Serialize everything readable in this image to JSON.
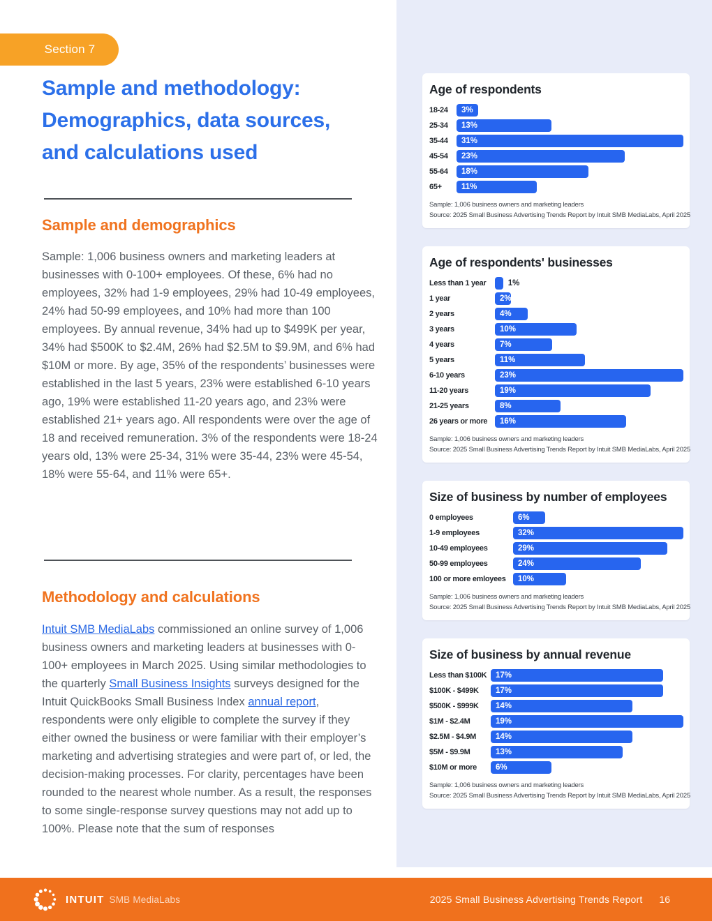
{
  "header": {
    "section_badge": "Section 7",
    "title_lines": [
      "Sample and methodology:",
      "Demographics, data sources,",
      "and calculations used"
    ]
  },
  "colors": {
    "badge_amber": "#f7a226",
    "heading_orange": "#f0731f",
    "footer_orange": "#f0711d",
    "title_blue": "#2c70e9",
    "link_blue": "#2968e4",
    "bar_blue": "#2765ef",
    "panel_bg": "#e8ecf9",
    "body_text": "#5a6067"
  },
  "sections": {
    "demographics": {
      "heading": "Sample and demographics",
      "body": "Sample: 1,006 business owners and marketing leaders at businesses with 0-100+ employees. Of these, 6% had no employees, 32% had 1-9 employees, 29% had 10-49 employees, 24% had 50-99 employees, and 10% had more than 100 employees. By annual revenue, 34% had up to $499K per year, 34% had $500K to $2.4M, 26% had $2.5M to $9.9M, and 6% had $10M or more. By age, 35% of the respondents’ businesses were established in the last 5 years, 23% were established 6-10 years ago, 19% were established 11-20 years ago, and 23% were established 21+ years ago. All respondents were over the age of 18 and received remuneration. 3% of the respondents were 18-24 years old, 13% were 25-34, 31% were 35-44, 23% were 45-54, 18% were 55-64, and 11% were 65+."
    },
    "methodology": {
      "heading": "Methodology and calculations",
      "segments": [
        {
          "type": "link",
          "name": "intuit-smb-medialabs-link",
          "text": "Intuit SMB MediaLabs"
        },
        {
          "type": "text",
          "text": " commissioned an online survey of 1,006 business owners and marketing leaders at businesses with 0-100+ employees in March 2025. Using similar methodologies to the quarterly "
        },
        {
          "type": "link",
          "name": "small-business-insights-link",
          "text": "Small Business Insights"
        },
        {
          "type": "text",
          "text": " surveys designed for the Intuit QuickBooks Small Business Index "
        },
        {
          "type": "link",
          "name": "annual-report-link",
          "text": "annual report"
        },
        {
          "type": "text",
          "text": ", respondents were only eligible to complete the survey if they either owned the business or were familiar with their employer’s marketing and advertising strategies and were part of, or led, the decision-making processes. For clarity, percentages have been rounded to the nearest whole number. As a result, the responses to some single-response survey questions may not add up to 100%. Please note that the sum of responses"
        }
      ]
    }
  },
  "chart_data": [
    {
      "type": "bar",
      "orientation": "horizontal",
      "title": "Age of respondents",
      "categories": [
        "18-24",
        "25-34",
        "35-44",
        "45-54",
        "55-64",
        "65+"
      ],
      "values": [
        3,
        13,
        31,
        23,
        18,
        11
      ],
      "value_suffix": "%",
      "xlim": [
        0,
        31
      ],
      "sample_note": "Sample: 1,006 business owners and marketing leaders",
      "source_note": "Source: 2025 Small Business Advertising Trends Report by Intuit SMB MediaLabs, April 2025"
    },
    {
      "type": "bar",
      "orientation": "horizontal",
      "title": "Age of respondents' businesses",
      "categories": [
        "Less than 1 year",
        "1 year",
        "2 years",
        "3 years",
        "4 years",
        "5 years",
        "6-10 years",
        "11-20 years",
        "21-25 years",
        "26 years or more"
      ],
      "values": [
        1,
        2,
        4,
        10,
        7,
        11,
        23,
        19,
        8,
        16
      ],
      "value_suffix": "%",
      "xlim": [
        0,
        23
      ],
      "sample_note": "Sample: 1,006 business owners and marketing leaders",
      "source_note": "Source: 2025 Small Business Advertising Trends Report by Intuit SMB MediaLabs, April 2025"
    },
    {
      "type": "bar",
      "orientation": "horizontal",
      "title": "Size of business by number of employees",
      "categories": [
        "0 employees",
        "1-9 employees",
        "10-49 employees",
        "50-99 employees",
        "100 or more emloyees"
      ],
      "values": [
        6,
        32,
        29,
        24,
        10
      ],
      "value_suffix": "%",
      "xlim": [
        0,
        32
      ],
      "sample_note": "Sample: 1,006 business owners and marketing leaders",
      "source_note": "Source: 2025 Small Business Advertising Trends Report by Intuit SMB MediaLabs, April 2025"
    },
    {
      "type": "bar",
      "orientation": "horizontal",
      "title": "Size of business by annual revenue",
      "categories": [
        "Less than $100K",
        "$100K - $499K",
        "$500K - $999K",
        "$1M - $2.4M",
        "$2.5M - $4.9M",
        "$5M - $9.9M",
        "$10M or more"
      ],
      "values": [
        17,
        17,
        14,
        19,
        14,
        13,
        6
      ],
      "value_suffix": "%",
      "xlim": [
        0,
        19
      ],
      "sample_note": "Sample: 1,006 business owners and marketing leaders",
      "source_note": "Source: 2025 Small Business Advertising Trends Report by Intuit SMB MediaLabs, April 2025"
    }
  ],
  "footer": {
    "brand": "INTUIT",
    "brand_suffix": "SMB MediaLabs",
    "report_title": "2025 Small Business Advertising Trends Report",
    "page_number": "16"
  }
}
